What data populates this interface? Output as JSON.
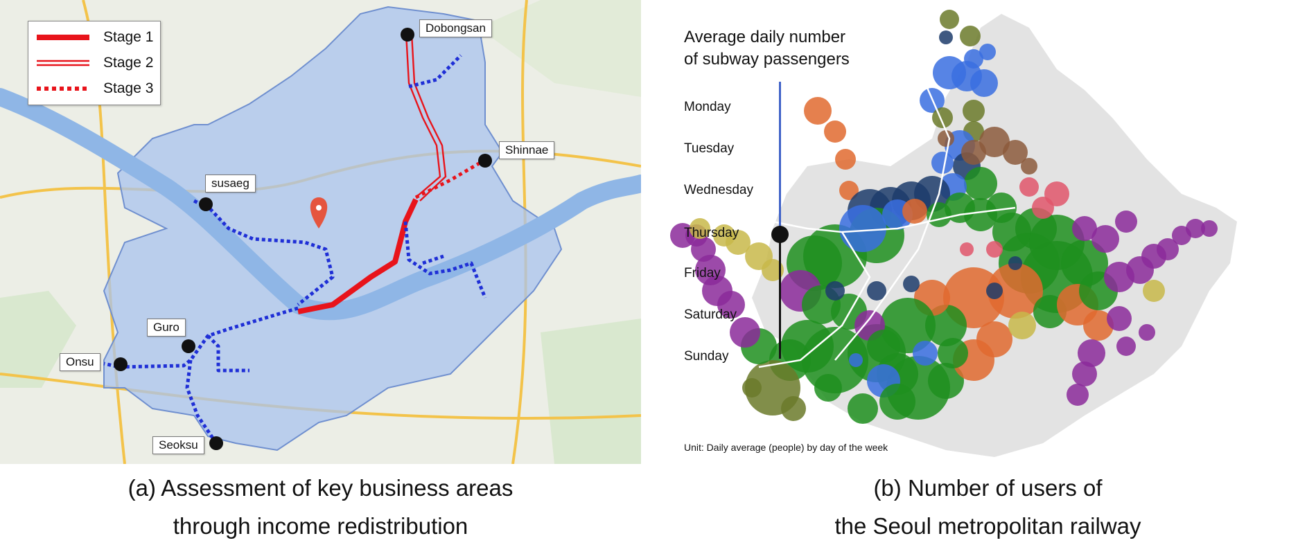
{
  "panel_a": {
    "legend": [
      {
        "label": "Stage 1",
        "style": "solid",
        "color": "#e8141b"
      },
      {
        "label": "Stage 2",
        "style": "double",
        "color": "#e8141b"
      },
      {
        "label": "Stage 3",
        "style": "dotted",
        "color": "#e8141b"
      }
    ],
    "stations": {
      "dobongsan": "Dobongsan",
      "shinnae": "Shinnae",
      "susaeg": "susaeg",
      "guro": "Guro",
      "onsu": "Onsu",
      "seoksu": "Seoksu"
    },
    "colors": {
      "seoul_fill": "#a9c3ee",
      "route": "#e8141b",
      "network": "#1f2fd6",
      "river": "#8fb6e6"
    },
    "caption_line1": "(a) Assessment of key business areas",
    "caption_line2": "through income redistribution"
  },
  "panel_b": {
    "title_line1": "Average daily number",
    "title_line2": "of subway passengers",
    "days": [
      "Monday",
      "Tuesday",
      "Wednesday",
      "Thursday",
      "Friday",
      "Saturday",
      "Sunday"
    ],
    "selected_day": "Thursday",
    "unit_note": "Unit: Daily average (people) by day of the week",
    "caption_line1": "(b) Number of users of",
    "caption_line2": "the Seoul metropolitan railway",
    "colors": {
      "line1": "#1d3c6b",
      "line2": "#1f8f1f",
      "line3": "#e06a2f",
      "line4": "#3a6fe0",
      "line5": "#8b2a9a",
      "line6": "#8c5a3c",
      "line7": "#6b7a2a",
      "line8": "#e0566b",
      "line9": "#c8b84a",
      "region": "#e3e3e3"
    }
  }
}
